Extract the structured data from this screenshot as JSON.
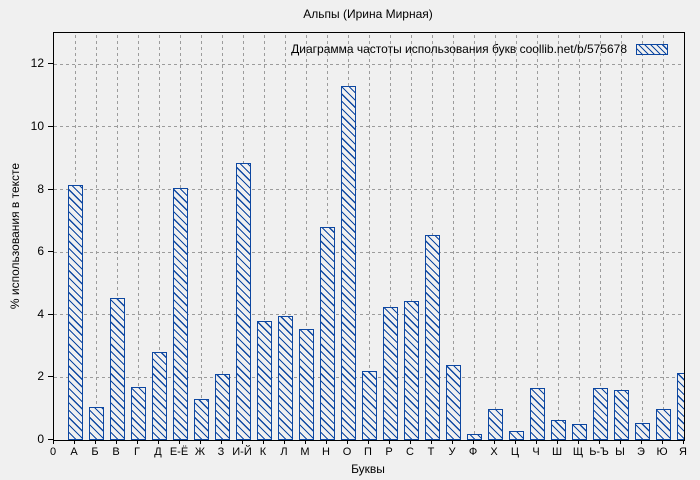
{
  "figure": {
    "title": "Альпы (Ирина Мирная)",
    "background_color": "#f0f0f0",
    "accent_color": "#0d47a1",
    "grid_color": "#9c9c9c"
  },
  "legend": {
    "label": "Диаграмма частоты использования букв coollib.net/b/575678",
    "swatch": "blue-hatch-swatch"
  },
  "chart_data": {
    "type": "bar",
    "title": "Альпы (Ирина Мирная)",
    "xlabel": "Буквы",
    "ylabel": "% использования в тексте",
    "legend": "Диаграмма частоты использования букв coollib.net/b/575678",
    "legend_position": "top-right",
    "grid": true,
    "ylim": [
      0,
      13
    ],
    "yticks": [
      0,
      2,
      4,
      6,
      8,
      10,
      12
    ],
    "bar_style": "diagonal-hatch",
    "bar_color": "#0d47a1",
    "categories": [
      "0",
      "А",
      "Б",
      "В",
      "Г",
      "Д",
      "Е-Ё",
      "Ж",
      "З",
      "И-Й",
      "К",
      "Л",
      "М",
      "Н",
      "О",
      "П",
      "Р",
      "С",
      "Т",
      "У",
      "Ф",
      "Х",
      "Ц",
      "Ч",
      "Ш",
      "Щ",
      "Ь-Ъ",
      "Ы",
      "Э",
      "Ю",
      "Я"
    ],
    "values": [
      0,
      8.15,
      1.05,
      4.55,
      1.7,
      2.8,
      8.05,
      1.3,
      2.1,
      8.85,
      3.8,
      3.95,
      3.55,
      6.8,
      11.3,
      2.2,
      4.25,
      4.45,
      6.55,
      2.4,
      0.2,
      1.0,
      0.3,
      1.65,
      0.65,
      0.5,
      1.65,
      1.6,
      0.55,
      1.0,
      2.15
    ]
  }
}
